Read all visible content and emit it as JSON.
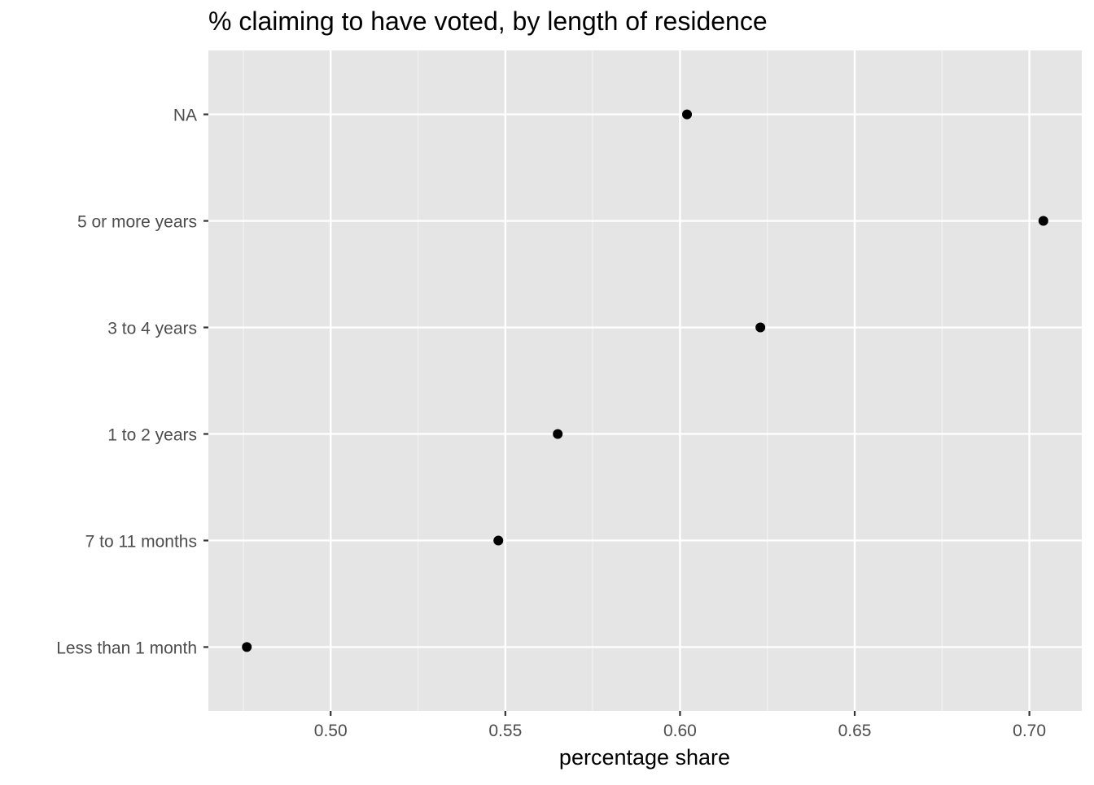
{
  "chart_data": {
    "type": "scatter",
    "title": "% claiming to have voted, by length of residence",
    "xlabel": "percentage share",
    "ylabel": "",
    "categories": [
      "Less than 1 month",
      "7 to 11 months",
      "1 to 2 years",
      "3 to 4 years",
      "5 or more years",
      "NA"
    ],
    "values": [
      0.476,
      0.548,
      0.565,
      0.623,
      0.704,
      0.602
    ],
    "x_ticks": [
      0.5,
      0.55,
      0.6,
      0.65,
      0.7
    ],
    "x_tick_labels": [
      "0.50",
      "0.55",
      "0.60",
      "0.65",
      "0.70"
    ],
    "xlim": [
      0.465,
      0.715
    ],
    "grid": true,
    "colors": {
      "panel_background": "#e5e5e5",
      "grid_major": "#ffffff",
      "grid_minor": "#f2f2f2",
      "point": "#000000",
      "tick_label": "#4d4d4d",
      "tick_mark": "#333333"
    }
  }
}
